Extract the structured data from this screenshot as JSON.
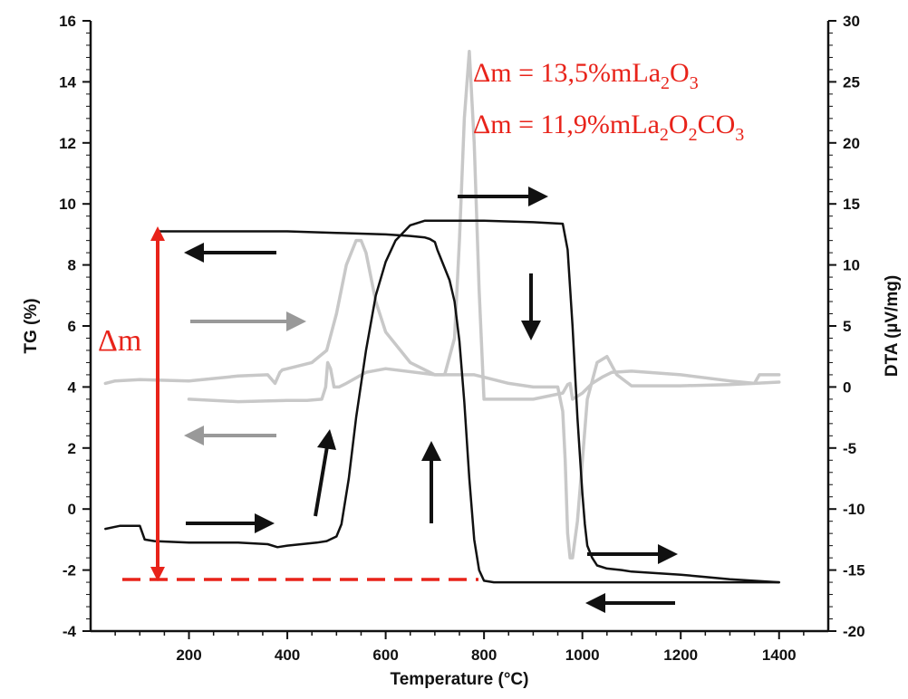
{
  "chart_data": {
    "type": "line",
    "title": "",
    "xlabel": "Temperature (°C)",
    "ylabel_left": "TG (%)",
    "ylabel_right": "DTA (µV/mg)",
    "xlim": [
      0,
      1500
    ],
    "ylim_left": [
      -4,
      16
    ],
    "ylim_right": [
      -20,
      30
    ],
    "x_ticks": [
      "200",
      "400",
      "600",
      "800",
      "1000",
      "1200",
      "1400"
    ],
    "y_left_ticks": [
      "-4",
      "-2",
      "0",
      "2",
      "4",
      "6",
      "8",
      "10",
      "12",
      "14",
      "16"
    ],
    "y_right_ticks": [
      "-20",
      "-15",
      "-10",
      "-5",
      "0",
      "5",
      "10",
      "15",
      "20",
      "25",
      "30"
    ],
    "grid": false,
    "colors": {
      "tg": "#111111",
      "dta": "#c8c8c8",
      "annotation": "#e8231a",
      "arrow_tg": "#111111",
      "arrow_dta": "#999999"
    },
    "series": [
      {
        "axis": "left",
        "x": [
          30,
          60,
          90,
          100,
          110,
          130,
          200,
          300,
          360,
          380,
          400,
          460,
          480,
          500,
          510,
          525,
          540,
          560,
          580,
          600,
          620,
          650,
          680,
          700,
          740,
          800,
          900,
          960,
          970,
          980,
          990,
          1000,
          1005,
          1010,
          1020,
          1030,
          1050,
          1080,
          1100,
          1200,
          1300,
          1400
        ],
        "y": [
          -0.65,
          -0.55,
          -0.55,
          -0.55,
          -1.0,
          -1.05,
          -1.1,
          -1.1,
          -1.15,
          -1.25,
          -1.2,
          -1.1,
          -1.05,
          -0.9,
          -0.5,
          1.0,
          3.0,
          5.2,
          7.0,
          8.1,
          8.8,
          9.3,
          9.45,
          9.45,
          9.45,
          9.45,
          9.4,
          9.35,
          8.5,
          6.0,
          3.0,
          0.5,
          -0.5,
          -1.2,
          -1.6,
          -1.85,
          -1.95,
          -2.0,
          -2.05,
          -2.15,
          -2.3,
          -2.4
        ]
      },
      {
        "axis": "left",
        "x": [
          1400,
          1300,
          1200,
          1100,
          1000,
          900,
          820,
          800,
          790,
          780,
          770,
          760,
          750,
          740,
          730,
          720,
          710,
          705,
          700,
          690,
          680,
          650,
          600,
          500,
          400,
          300,
          200,
          140
        ],
        "y": [
          -2.4,
          -2.4,
          -2.4,
          -2.4,
          -2.4,
          -2.4,
          -2.4,
          -2.35,
          -2.0,
          -1.0,
          1.0,
          3.5,
          5.5,
          6.8,
          7.5,
          7.9,
          8.3,
          8.5,
          8.75,
          8.85,
          8.9,
          8.95,
          9.0,
          9.05,
          9.1,
          9.1,
          9.1,
          9.1
        ]
      },
      {
        "axis": "right",
        "x": [
          30,
          50,
          100,
          200,
          300,
          360,
          375,
          385,
          390,
          400,
          450,
          480,
          500,
          520,
          540,
          550,
          560,
          580,
          600,
          650,
          700,
          720,
          740,
          750,
          760,
          770,
          780,
          790,
          800,
          810,
          900,
          960,
          970,
          975,
          980,
          1000,
          1020,
          1040,
          1060,
          1100,
          1200,
          1300,
          1350,
          1360,
          1400
        ],
        "y": [
          0.3,
          0.5,
          0.6,
          0.5,
          0.9,
          1.0,
          0.3,
          1.2,
          1.4,
          1.5,
          2.0,
          3.0,
          6.0,
          10.0,
          12.0,
          12.0,
          11.0,
          7.0,
          4.5,
          2.0,
          1.0,
          1.0,
          4.0,
          12.0,
          22.0,
          27.5,
          20.0,
          8.0,
          -1.0,
          -1.0,
          -1.0,
          -0.5,
          0.2,
          0.3,
          -1.0,
          -0.5,
          0.3,
          0.8,
          1.2,
          1.3,
          1.0,
          0.5,
          0.3,
          1.0,
          1.0
        ]
      },
      {
        "axis": "right",
        "x": [
          1400,
          1300,
          1200,
          1100,
          1070,
          1050,
          1030,
          1010,
          1000,
          990,
          980,
          975,
          970,
          965,
          960,
          950,
          940,
          900,
          850,
          800,
          780,
          770,
          760,
          700,
          600,
          560,
          520,
          505,
          495,
          488,
          482,
          478,
          470,
          440,
          400,
          300,
          200
        ],
        "y": [
          0.4,
          0.2,
          0.1,
          0.1,
          1.0,
          2.5,
          2.0,
          -1.0,
          -6.0,
          -11.0,
          -14.0,
          -14.0,
          -12.0,
          -6.0,
          -2.0,
          0.0,
          0.0,
          0.0,
          0.3,
          0.8,
          1.0,
          1.0,
          1.0,
          1.0,
          1.5,
          1.2,
          0.3,
          0.0,
          0.0,
          1.5,
          2.0,
          0.0,
          -1.0,
          -1.1,
          -1.1,
          -1.2,
          -1.0
        ]
      }
    ],
    "annotations": {
      "delta_m": "Δm",
      "line1": {
        "prefix": "Δm = 13,5%mLa",
        "sub1": "2",
        "mid": "O",
        "sub2": "3"
      },
      "line2": {
        "prefix": "Δm = 11,9%mLa",
        "sub1": "2",
        "mid": "O",
        "sub2": "2",
        "tail": "CO",
        "sub3": "3"
      }
    }
  }
}
